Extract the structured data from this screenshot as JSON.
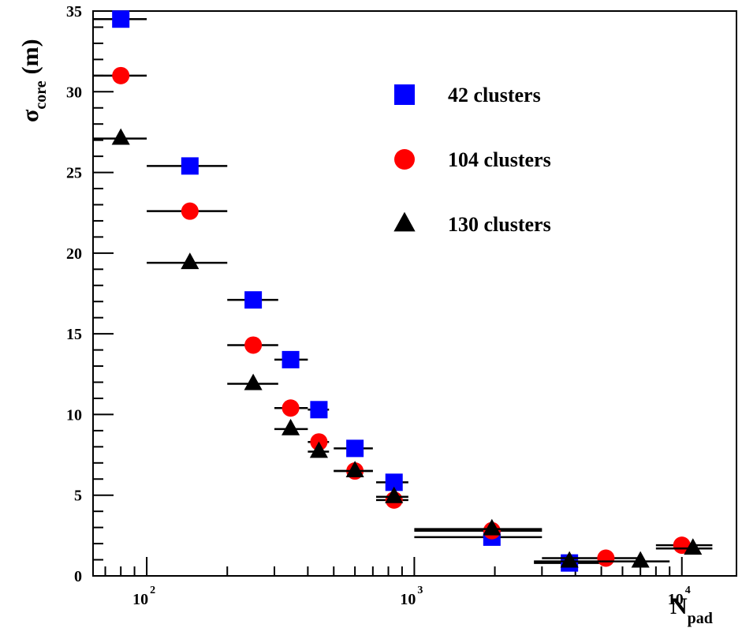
{
  "chart_data": {
    "type": "scatter",
    "xlabel": "N",
    "xlabel_sub": "pad",
    "ylabel": "σ",
    "ylabel_sub": "core",
    "ylabel_unit": "(m)",
    "x_scale": "log",
    "xlim": [
      63,
      16000
    ],
    "ylim": [
      0,
      35
    ],
    "x_ticks": [
      {
        "base": "10",
        "exp": "2",
        "value": 100
      },
      {
        "base": "10",
        "exp": "3",
        "value": 1000
      },
      {
        "base": "10",
        "exp": "4",
        "value": 10000
      }
    ],
    "y_ticks": [
      {
        "label": "0",
        "value": 0
      },
      {
        "label": "5",
        "value": 5
      },
      {
        "label": "10",
        "value": 10
      },
      {
        "label": "15",
        "value": 15
      },
      {
        "label": "20",
        "value": 20
      },
      {
        "label": "25",
        "value": 25
      },
      {
        "label": "30",
        "value": 30
      },
      {
        "label": "35",
        "value": 35
      }
    ],
    "grid": false,
    "legend_position": "top-right",
    "series": [
      {
        "name": "42 clusters",
        "marker": "square",
        "color": "#0000ff",
        "points": [
          {
            "x": 80,
            "y": 34.5,
            "xlo": 63,
            "xhi": 100
          },
          {
            "x": 145,
            "y": 25.4,
            "xlo": 100,
            "xhi": 200
          },
          {
            "x": 250,
            "y": 17.1,
            "xlo": 200,
            "xhi": 310
          },
          {
            "x": 345,
            "y": 13.4,
            "xlo": 300,
            "xhi": 400
          },
          {
            "x": 440,
            "y": 10.3,
            "xlo": 400,
            "xhi": 480
          },
          {
            "x": 600,
            "y": 7.9,
            "xlo": 500,
            "xhi": 700
          },
          {
            "x": 840,
            "y": 5.8,
            "xlo": 720,
            "xhi": 950
          },
          {
            "x": 1950,
            "y": 2.4,
            "xlo": 1000,
            "xhi": 3000
          },
          {
            "x": 3800,
            "y": 0.8,
            "xlo": 2800,
            "xhi": 5000
          }
        ]
      },
      {
        "name": "104 clusters",
        "marker": "circle",
        "color": "#ff0000",
        "points": [
          {
            "x": 80,
            "y": 31.0,
            "xlo": 63,
            "xhi": 100
          },
          {
            "x": 145,
            "y": 22.6,
            "xlo": 100,
            "xhi": 200
          },
          {
            "x": 250,
            "y": 14.3,
            "xlo": 200,
            "xhi": 310
          },
          {
            "x": 345,
            "y": 10.4,
            "xlo": 300,
            "xhi": 400
          },
          {
            "x": 440,
            "y": 8.3,
            "xlo": 400,
            "xhi": 480
          },
          {
            "x": 600,
            "y": 6.5,
            "xlo": 500,
            "xhi": 700
          },
          {
            "x": 840,
            "y": 4.7,
            "xlo": 720,
            "xhi": 950
          },
          {
            "x": 1950,
            "y": 2.8,
            "xlo": 1000,
            "xhi": 3000
          },
          {
            "x": 5200,
            "y": 1.1,
            "xlo": 3000,
            "xhi": 7000
          },
          {
            "x": 10000,
            "y": 1.9,
            "xlo": 8000,
            "xhi": 13000
          }
        ]
      },
      {
        "name": "130 clusters",
        "marker": "triangle",
        "color": "#000000",
        "points": [
          {
            "x": 80,
            "y": 27.1,
            "xlo": 63,
            "xhi": 100
          },
          {
            "x": 145,
            "y": 19.4,
            "xlo": 100,
            "xhi": 200
          },
          {
            "x": 250,
            "y": 11.9,
            "xlo": 200,
            "xhi": 310
          },
          {
            "x": 345,
            "y": 9.1,
            "xlo": 300,
            "xhi": 400
          },
          {
            "x": 440,
            "y": 7.7,
            "xlo": 400,
            "xhi": 480
          },
          {
            "x": 600,
            "y": 6.5,
            "xlo": 500,
            "xhi": 700
          },
          {
            "x": 840,
            "y": 4.9,
            "xlo": 720,
            "xhi": 950
          },
          {
            "x": 1950,
            "y": 2.9,
            "xlo": 1000,
            "xhi": 3000
          },
          {
            "x": 3800,
            "y": 0.9,
            "xlo": 2800,
            "xhi": 5000
          },
          {
            "x": 7000,
            "y": 0.9,
            "xlo": 5000,
            "xhi": 9000
          },
          {
            "x": 11000,
            "y": 1.7,
            "xlo": 8000,
            "xhi": 13000
          }
        ]
      }
    ]
  }
}
